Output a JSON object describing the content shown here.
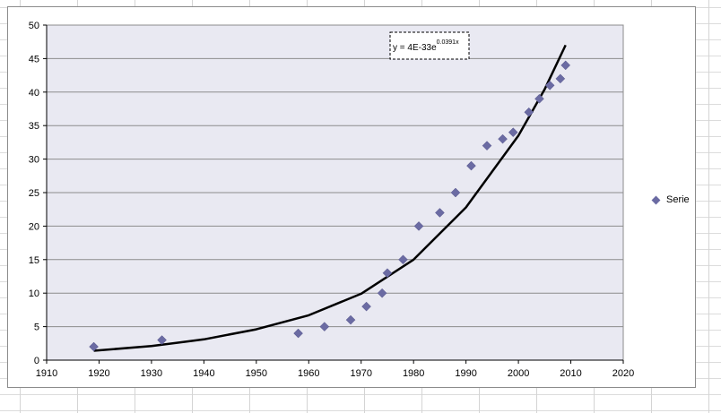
{
  "chart_data": {
    "type": "scatter",
    "title": "",
    "xlabel": "",
    "ylabel": "",
    "xlim": [
      1910,
      2020
    ],
    "ylim": [
      0,
      50
    ],
    "x_ticks": [
      1910,
      1920,
      1930,
      1940,
      1950,
      1960,
      1970,
      1980,
      1990,
      2000,
      2010,
      2020
    ],
    "y_ticks": [
      0,
      5,
      10,
      15,
      20,
      25,
      30,
      35,
      40,
      45,
      50
    ],
    "grid": "horizontal",
    "legend": "right",
    "series": [
      {
        "name": "Serie",
        "color": "#6b6ba3",
        "marker": "diamond",
        "points": [
          [
            1919,
            2
          ],
          [
            1932,
            3
          ],
          [
            1958,
            4
          ],
          [
            1963,
            5
          ],
          [
            1968,
            6
          ],
          [
            1971,
            8
          ],
          [
            1974,
            10
          ],
          [
            1975,
            13
          ],
          [
            1978,
            15
          ],
          [
            1981,
            20
          ],
          [
            1985,
            22
          ],
          [
            1988,
            25
          ],
          [
            1991,
            29
          ],
          [
            1994,
            32
          ],
          [
            1997,
            33
          ],
          [
            1999,
            34
          ],
          [
            2002,
            37
          ],
          [
            2004,
            39
          ],
          [
            2006,
            41
          ],
          [
            2008,
            42
          ],
          [
            2009,
            44
          ]
        ]
      }
    ],
    "trendline": {
      "type": "exponential",
      "color": "#000000",
      "x_range": [
        1919,
        2009
      ],
      "points": [
        [
          1919,
          1.4
        ],
        [
          1930,
          2.1
        ],
        [
          1940,
          3.1
        ],
        [
          1950,
          4.6
        ],
        [
          1960,
          6.7
        ],
        [
          1970,
          9.9
        ],
        [
          1980,
          15.0
        ],
        [
          1990,
          22.8
        ],
        [
          2000,
          33.5
        ],
        [
          2005,
          40.4
        ],
        [
          2009,
          47.0
        ]
      ],
      "equation_label": "y = 4E-33e",
      "equation_exponent": "0.0391x"
    }
  }
}
